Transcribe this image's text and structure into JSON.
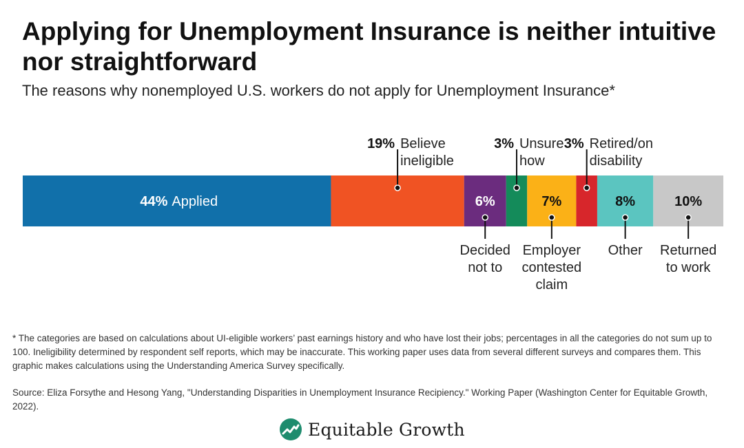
{
  "title": "Applying for Unemployment Insurance is neither intuitive nor straightforward",
  "subtitle": "The reasons why nonemployed U.S. workers do not apply for Unemployment Insurance*",
  "footnote": "* The categories are based on calculations about UI-eligible workers’ past earnings history and who have lost their jobs; percentages in all the categories do not sum up to 100. Ineligibility determined by respondent self reports, which may be inaccurate. This working paper uses data from several different surveys and compares them. This graphic makes calculations using the Understanding America Survey specifically.",
  "source": "Source: Eliza Forsythe and Hesong Yang, \"Understanding Disparities in Unemployment Insurance Recipiency.\" Working Paper (Washington Center for Equitable Growth, 2022).",
  "brand": {
    "name": "Equitable Growth",
    "icon": "equitable-growth-logo-icon"
  },
  "chart_data": {
    "type": "bar",
    "orientation": "horizontal-stacked",
    "grid": false,
    "legend": "none",
    "segments": [
      {
        "key": "applied",
        "value": 44,
        "value_label": "44%",
        "label": "Applied",
        "color": "#1170AA",
        "label_position": "inside"
      },
      {
        "key": "believe-ineligible",
        "value": 19,
        "value_label": "19%",
        "label": "Believe\nineligible",
        "color": "#F05323",
        "label_position": "above"
      },
      {
        "key": "decided-not-to",
        "value": 6,
        "value_label": "6%",
        "label": "Decided\nnot to",
        "color": "#6B2C7E",
        "label_position": "below"
      },
      {
        "key": "unsure-how",
        "value": 3,
        "value_label": "3%",
        "label": "Unsure\nhow",
        "color": "#148B5A",
        "label_position": "above"
      },
      {
        "key": "employer-contested-claim",
        "value": 7,
        "value_label": "7%",
        "label": "Employer\ncontested\nclaim",
        "color": "#FBB117",
        "label_position": "below"
      },
      {
        "key": "retired-on-disability",
        "value": 3,
        "value_label": "3%",
        "label": "Retired/on\ndisability",
        "color": "#D7262B",
        "label_position": "above"
      },
      {
        "key": "other",
        "value": 8,
        "value_label": "8%",
        "label": "Other",
        "color": "#5BC5C0",
        "label_position": "below"
      },
      {
        "key": "returned-to-work",
        "value": 10,
        "value_label": "10%",
        "label": "Returned\nto work",
        "color": "#C8C8C8",
        "label_position": "below"
      }
    ]
  }
}
